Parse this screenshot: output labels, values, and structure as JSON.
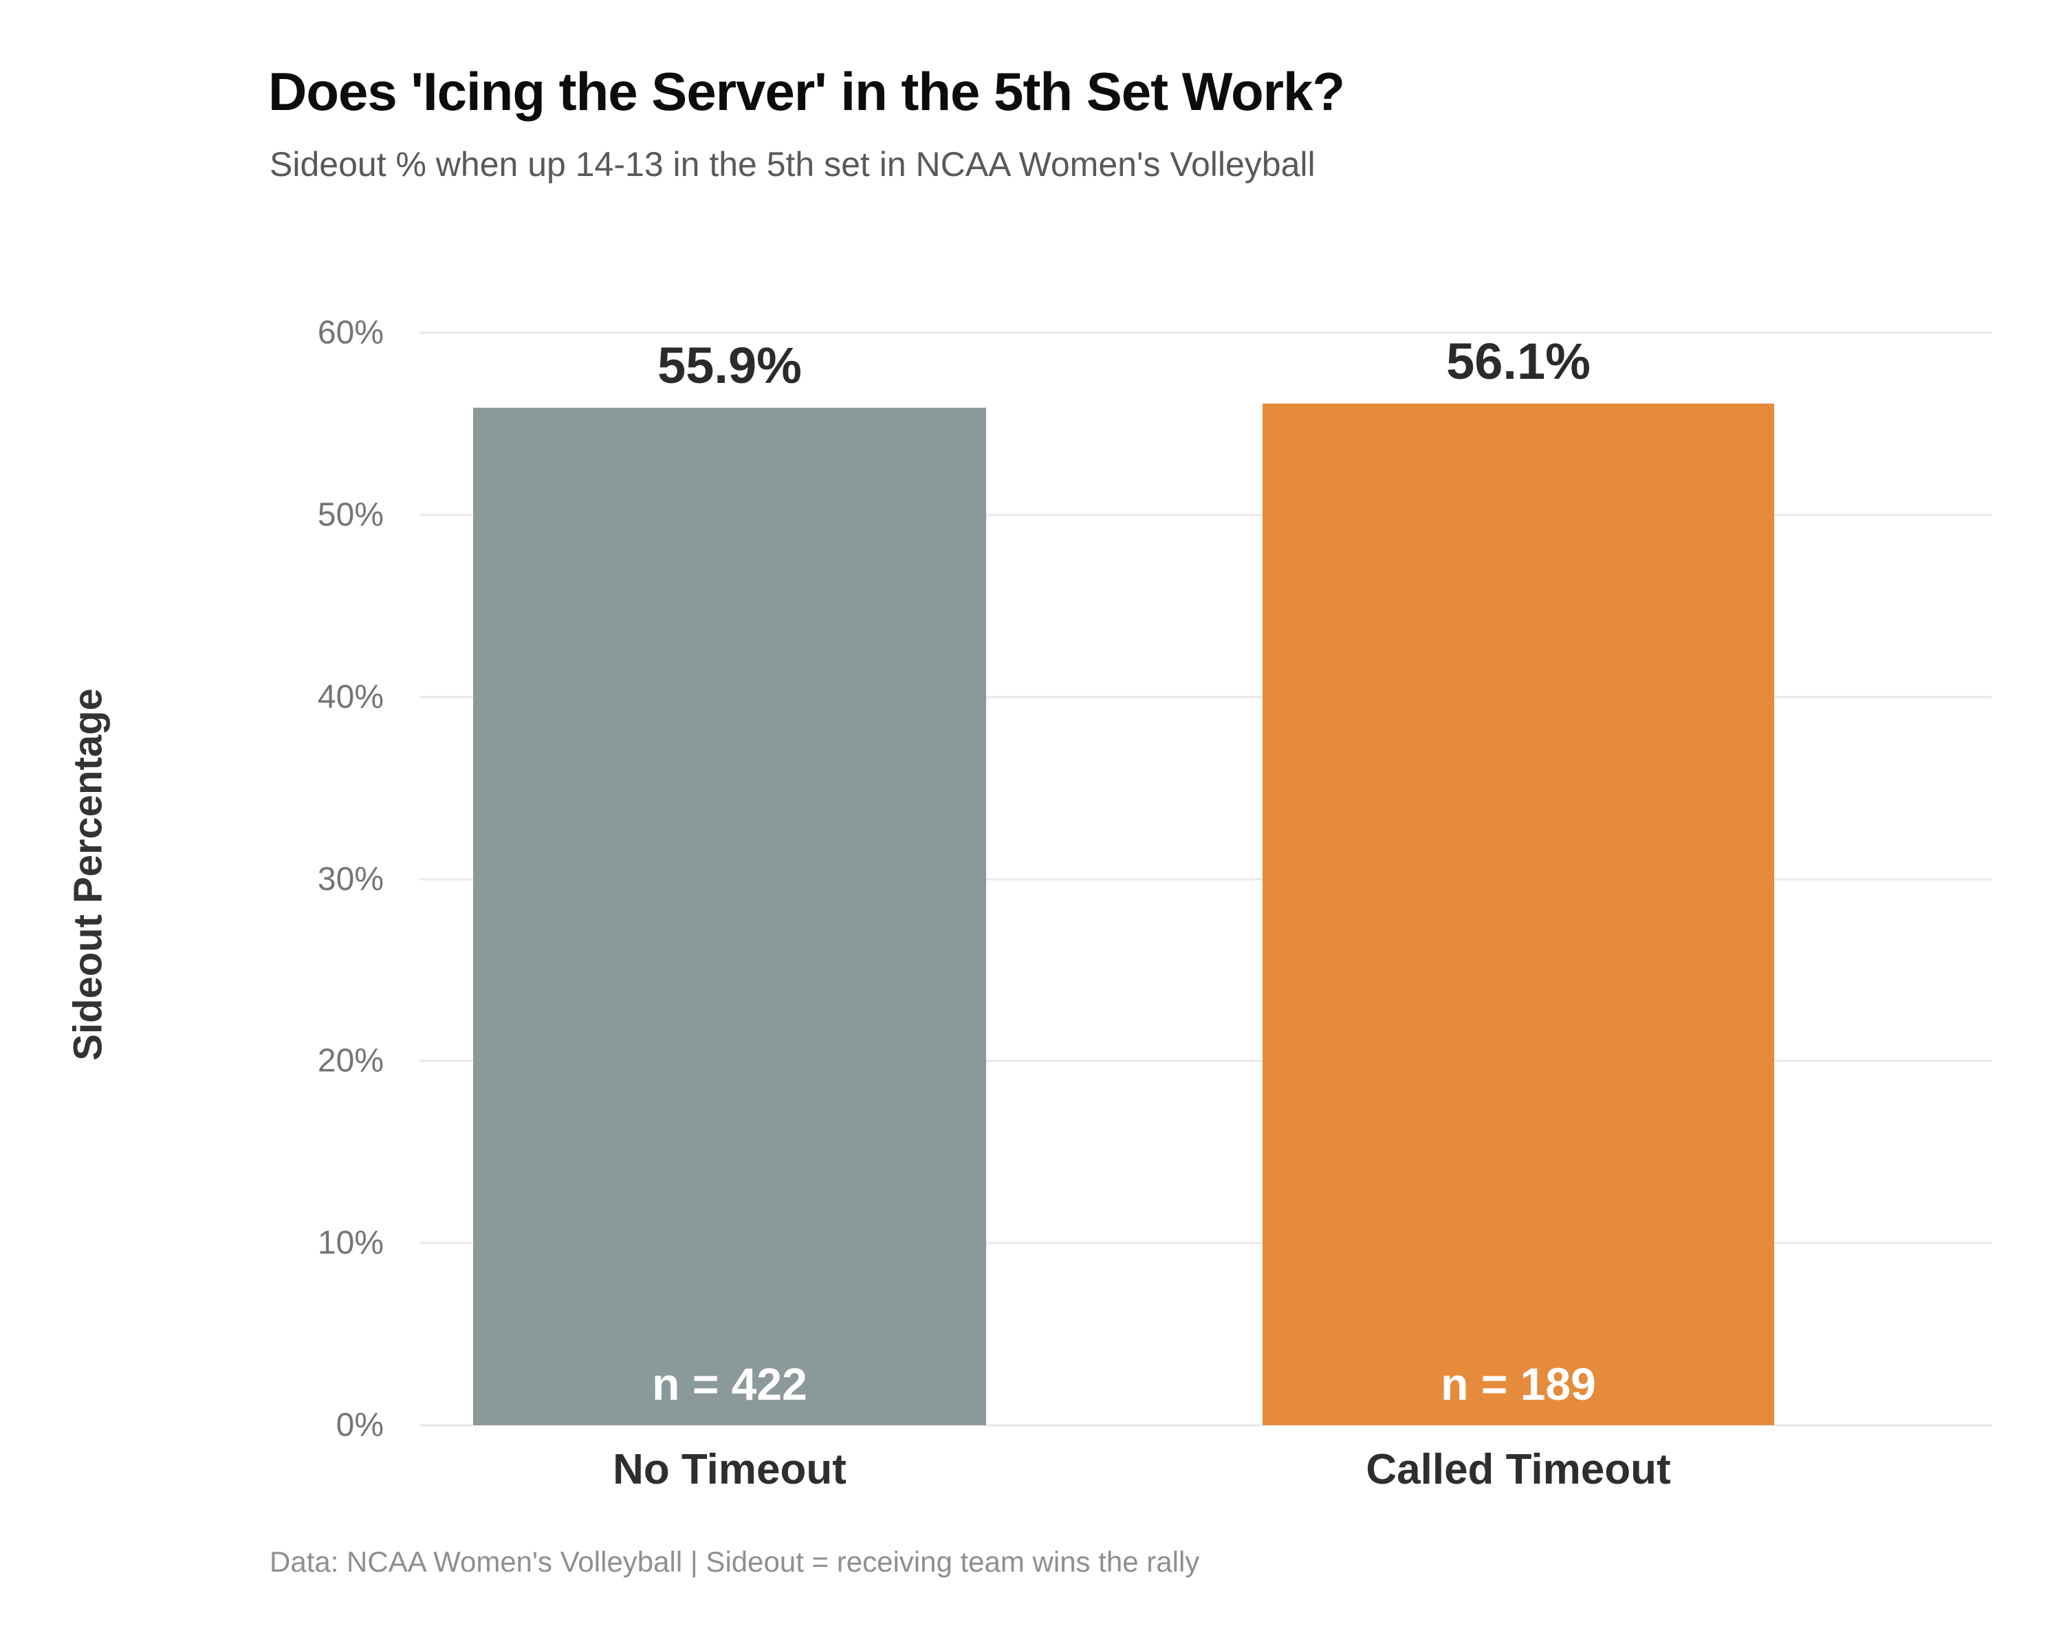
{
  "header": {
    "title": "Does 'Icing the Server' in the 5th Set Work?",
    "subtitle": "Sideout % when up 14-13 in the 5th set in NCAA Women's Volleyball"
  },
  "chart_data": {
    "type": "bar",
    "title": "Does 'Icing the Server' in the 5th Set Work?",
    "subtitle": "Sideout % when up 14-13 in the 5th set in NCAA Women's Volleyball",
    "categories": [
      "No Timeout",
      "Called Timeout"
    ],
    "values": [
      55.9,
      56.1
    ],
    "bars": [
      {
        "category": "No Timeout",
        "value": 55.9,
        "value_label": "55.9%",
        "n": 422,
        "n_label": "n = 422",
        "color": "#8c999a"
      },
      {
        "category": "Called Timeout",
        "value": 56.1,
        "value_label": "56.1%",
        "n": 189,
        "n_label": "n = 189",
        "color": "#e68b3c"
      }
    ],
    "xlabel": "",
    "ylabel": "Sideout Percentage",
    "ylim": [
      0,
      60
    ],
    "yticks": [
      {
        "label": "60%",
        "value": 60
      },
      {
        "label": "50%",
        "value": 50
      },
      {
        "label": "40%",
        "value": 40
      },
      {
        "label": "30%",
        "value": 30
      },
      {
        "label": "20%",
        "value": 20
      },
      {
        "label": "10%",
        "value": 10
      },
      {
        "label": "0%",
        "value": 0
      }
    ],
    "grid": "horizontal",
    "legend_position": "none",
    "colors": {
      "no_timeout_bar": "#8c999a",
      "called_timeout_bar": "#e68b3c",
      "gridline": "#e9e9e9",
      "tick_label": "#757575",
      "value_label": "#2b2b2b",
      "n_label_text": "#ffffff"
    }
  },
  "footer": {
    "note": "Data: NCAA Women's Volleyball | Sideout = receiving team wins the rally"
  }
}
